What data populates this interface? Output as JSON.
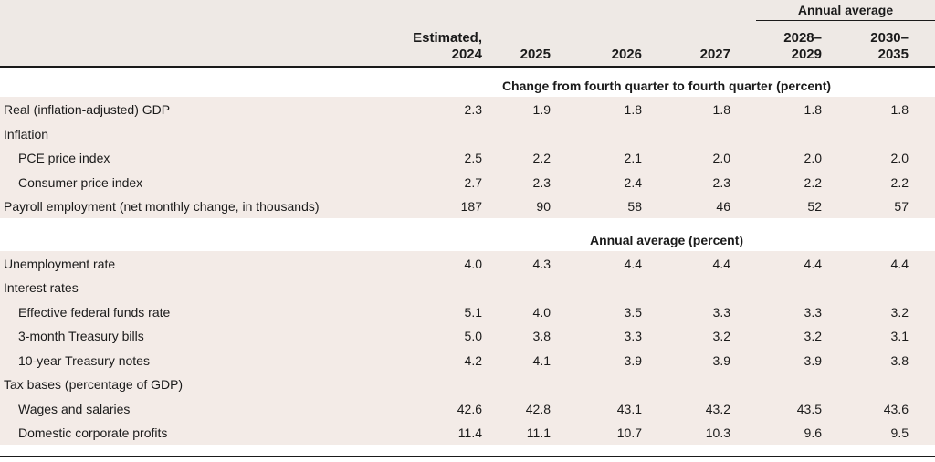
{
  "header": {
    "group_label": "Annual average",
    "columns": [
      "Estimated,\n2024",
      "2025",
      "2026",
      "2027",
      "2028–\n2029",
      "2030–\n2035"
    ]
  },
  "sections": [
    {
      "label": "Change from fourth quarter to fourth quarter (percent)",
      "rows": [
        {
          "label": "Real (inflation-adjusted) GDP",
          "indent": false,
          "values": [
            "2.3",
            "1.9",
            "1.8",
            "1.8",
            "1.8",
            "1.8"
          ]
        },
        {
          "label": "Inflation",
          "indent": false,
          "values": []
        },
        {
          "label": "PCE price index",
          "indent": true,
          "values": [
            "2.5",
            "2.2",
            "2.1",
            "2.0",
            "2.0",
            "2.0"
          ]
        },
        {
          "label": "Consumer price index",
          "indent": true,
          "values": [
            "2.7",
            "2.3",
            "2.4",
            "2.3",
            "2.2",
            "2.2"
          ]
        },
        {
          "label": "Payroll employment (net monthly change, in thousands)",
          "indent": false,
          "values": [
            "187",
            "90",
            "58",
            "46",
            "52",
            "57"
          ]
        }
      ]
    },
    {
      "label": "Annual average (percent)",
      "rows": [
        {
          "label": "Unemployment rate",
          "indent": false,
          "values": [
            "4.0",
            "4.3",
            "4.4",
            "4.4",
            "4.4",
            "4.4"
          ]
        },
        {
          "label": "Interest rates",
          "indent": false,
          "values": []
        },
        {
          "label": "Effective federal funds rate",
          "indent": true,
          "values": [
            "5.1",
            "4.0",
            "3.5",
            "3.3",
            "3.3",
            "3.2"
          ]
        },
        {
          "label": "3-month Treasury bills",
          "indent": true,
          "values": [
            "5.0",
            "3.8",
            "3.3",
            "3.2",
            "3.2",
            "3.1"
          ]
        },
        {
          "label": "10-year Treasury notes",
          "indent": true,
          "values": [
            "4.2",
            "4.1",
            "3.9",
            "3.9",
            "3.9",
            "3.8"
          ]
        },
        {
          "label": "Tax bases (percentage of GDP)",
          "indent": false,
          "values": []
        },
        {
          "label": "Wages and salaries",
          "indent": true,
          "values": [
            "42.6",
            "42.8",
            "43.1",
            "43.2",
            "43.5",
            "43.6"
          ]
        },
        {
          "label": "Domestic corporate profits",
          "indent": true,
          "values": [
            "11.4",
            "11.1",
            "10.7",
            "10.3",
            "9.6",
            "9.5"
          ]
        }
      ]
    }
  ],
  "colors": {
    "band": "#f3ebe7",
    "header_bg": "#eee9e5",
    "rule": "#1a1a1a"
  }
}
